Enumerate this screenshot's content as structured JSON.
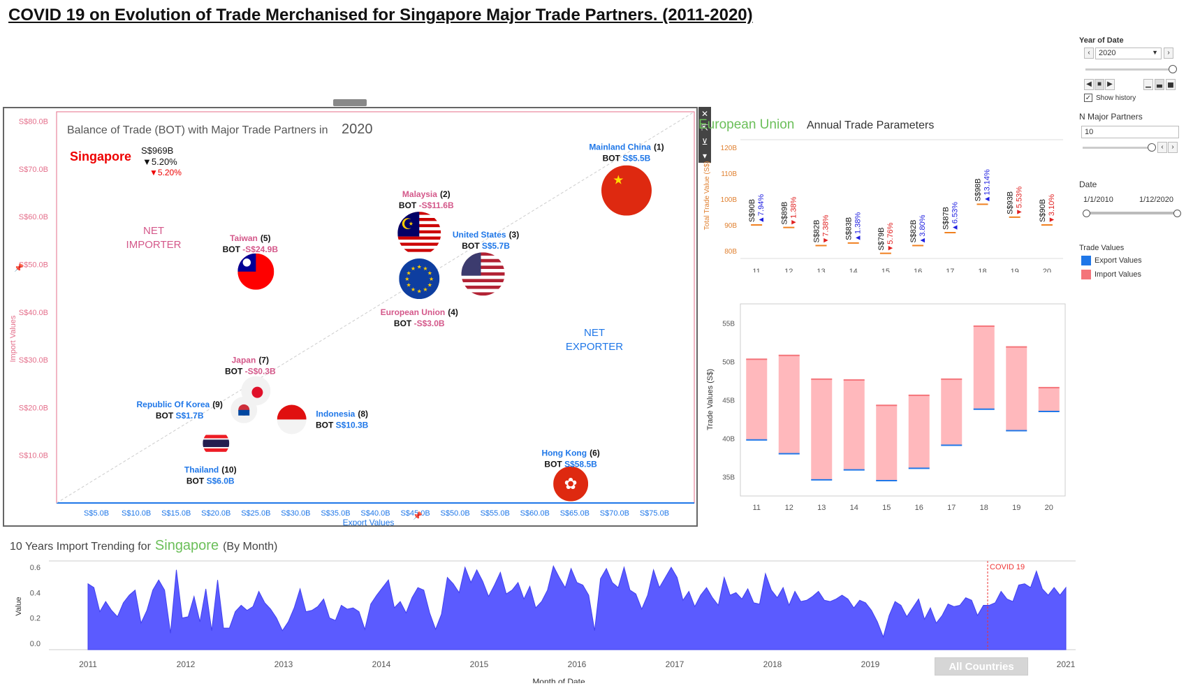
{
  "title": "COVID 19 on Evolution of Trade Merchanised for Singapore Major Trade Partners. (2011-2020)",
  "colors": {
    "export": "#1f77e8",
    "import": "#f4747a",
    "area": "#5b5bff",
    "pink_label": "#d4588a",
    "blue_label": "#1f77e8",
    "green_title": "#6bbf59",
    "axis": "#1f77e8",
    "ink": "#222"
  },
  "scatter": {
    "title_prefix": "Balance of Trade (BOT) with Major Trade Partners in",
    "title_year": "2020",
    "country": "Singapore",
    "total": "S$969B",
    "change_black": "▼5.20%",
    "change_red": "▼5.20%",
    "net_importer": [
      "NET",
      "IMPORTER"
    ],
    "net_exporter": [
      "NET",
      "EXPORTER"
    ],
    "x_title": "Export Values",
    "y_title": "Import Values",
    "x_ticks": [
      "S$5.0B",
      "S$10.0B",
      "S$15.0B",
      "S$20.0B",
      "S$25.0B",
      "S$30.0B",
      "S$35.0B",
      "S$40.0B",
      "S$45.0B",
      "S$50.0B",
      "S$55.0B",
      "S$60.0B",
      "S$65.0B",
      "S$70.0B",
      "S$75.0B"
    ],
    "y_ticks": [
      "S$10.0B",
      "S$20.0B",
      "S$30.0B",
      "S$40.0B",
      "S$50.0B",
      "S$60.0B",
      "S$70.0B",
      "S$80.0B"
    ],
    "toolbar": [
      "✕",
      "⇱",
      "⊻",
      "▾"
    ]
  },
  "chart_data": [
    {
      "type": "scatter",
      "xlabel": "Export Values",
      "ylabel": "Import Values",
      "xlim": [
        0,
        80
      ],
      "ylim": [
        0,
        82
      ],
      "points": [
        {
          "name": "Mainland China",
          "rank": "(1)",
          "bot": "S$5.5B",
          "x": 71.5,
          "y": 65.5,
          "flag": "china",
          "bot_color": "blue"
        },
        {
          "name": "Malaysia",
          "rank": "(2)",
          "bot": "-S$11.6B",
          "x": 45.5,
          "y": 56.5,
          "flag": "malaysia",
          "bot_color": "pink"
        },
        {
          "name": "United States",
          "rank": "(3)",
          "bot": "S$5.7B",
          "x": 53.5,
          "y": 48.0,
          "flag": "usa",
          "bot_color": "blue"
        },
        {
          "name": "European Union",
          "rank": "(4)",
          "bot": "-S$3.0B",
          "x": 45.5,
          "y": 47.0,
          "flag": "eu",
          "bot_color": "pink"
        },
        {
          "name": "Taiwan",
          "rank": "(5)",
          "bot": "-S$24.9B",
          "x": 25.0,
          "y": 48.5,
          "flag": "taiwan",
          "bot_color": "pink"
        },
        {
          "name": "Hong Kong",
          "rank": "(6)",
          "bot": "S$58.5B",
          "x": 64.5,
          "y": 4.0,
          "flag": "hongkong",
          "bot_color": "blue"
        },
        {
          "name": "Japan",
          "rank": "(7)",
          "bot": "-S$0.3B",
          "x": 25.0,
          "y": 23.5,
          "flag": "japan",
          "bot_color": "pink"
        },
        {
          "name": "Indonesia",
          "rank": "(8)",
          "bot": "S$10.3B",
          "x": 29.5,
          "y": 17.5,
          "flag": "indonesia",
          "bot_color": "blue"
        },
        {
          "name": "Republic Of Korea",
          "rank": "(9)",
          "bot": "S$1.7B",
          "x": 23.5,
          "y": 19.5,
          "flag": "korea",
          "bot_color": "blue"
        },
        {
          "name": "Thailand",
          "rank": "(10)",
          "bot": "S$6.0B",
          "x": 20.0,
          "y": 12.5,
          "flag": "thailand",
          "bot_color": "blue"
        }
      ]
    },
    {
      "type": "line",
      "title_partner": "European Union",
      "title_suffix": "Annual Trade Parameters",
      "ylabel": "Total Trade Value (S$)",
      "ylim": [
        77,
        123
      ],
      "y_ticks": [
        "80B",
        "90B",
        "100B",
        "110B",
        "120B"
      ],
      "y_tick_values": [
        80,
        90,
        100,
        110,
        120
      ],
      "categories": [
        "11",
        "12",
        "13",
        "14",
        "15",
        "16",
        "17",
        "18",
        "19",
        "20"
      ],
      "values": [
        90,
        89,
        82,
        83,
        79,
        82,
        87,
        98,
        93,
        90
      ],
      "value_labels": [
        "S$90B",
        "S$89B",
        "S$82B",
        "S$83B",
        "S$79B",
        "S$82B",
        "S$87B",
        "S$98B",
        "S$93B",
        "S$90B"
      ],
      "changes": [
        "7.94%",
        "1.38%",
        "7.38%",
        "1.38%",
        "5.76%",
        "3.80%",
        "6.53%",
        "13.14%",
        "5.53%",
        "3.10%"
      ],
      "direction": [
        "up",
        "down",
        "down",
        "up",
        "down",
        "up",
        "up",
        "up",
        "down",
        "down"
      ]
    },
    {
      "type": "bar",
      "ylabel": "Trade Values (S$)",
      "ylim": [
        32.5,
        57.5
      ],
      "y_ticks": [
        "35B",
        "40B",
        "45B",
        "50B",
        "55B"
      ],
      "y_tick_values": [
        35,
        40,
        45,
        50,
        55
      ],
      "categories": [
        "11",
        "12",
        "13",
        "14",
        "15",
        "16",
        "17",
        "18",
        "19",
        "20"
      ],
      "series": [
        {
          "name": "Export Values",
          "values": [
            39.8,
            38.0,
            34.6,
            35.9,
            34.5,
            36.1,
            39.1,
            43.8,
            41.0,
            43.5
          ]
        },
        {
          "name": "Import Values",
          "values": [
            50.3,
            50.8,
            47.7,
            47.6,
            44.3,
            45.6,
            47.7,
            54.6,
            51.9,
            46.6
          ]
        }
      ]
    },
    {
      "type": "area",
      "title_prefix": "10 Years Import Trending for",
      "title_country": "Singapore",
      "title_suffix": "(By Month)",
      "xlabel": "Month of Date",
      "ylabel": "Value",
      "y_ticks": [
        "0.0",
        "0.2",
        "0.4",
        "0.6"
      ],
      "y_tick_values": [
        0,
        0.2,
        0.4,
        0.6
      ],
      "ylim": [
        -0.05,
        0.65
      ],
      "x_ticks": [
        "2011",
        "2012",
        "2013",
        "2014",
        "2015",
        "2016",
        "2017",
        "2018",
        "2019",
        "2020",
        "2021"
      ],
      "x_start": 2011,
      "x_end": 2021,
      "annotation": {
        "label": "COVID 19",
        "x": 2020.2
      },
      "values": [
        0.47,
        0.44,
        0.25,
        0.33,
        0.26,
        0.21,
        0.32,
        0.38,
        0.42,
        0.16,
        0.26,
        0.42,
        0.5,
        0.42,
        0.08,
        0.58,
        0.2,
        0.21,
        0.37,
        0.17,
        0.43,
        0.1,
        0.5,
        0.12,
        0.12,
        0.25,
        0.3,
        0.26,
        0.29,
        0.41,
        0.32,
        0.27,
        0.2,
        0.1,
        0.17,
        0.28,
        0.43,
        0.25,
        0.26,
        0.29,
        0.35,
        0.2,
        0.18,
        0.3,
        0.27,
        0.28,
        0.25,
        0.11,
        0.31,
        0.38,
        0.44,
        0.5,
        0.28,
        0.33,
        0.24,
        0.36,
        0.44,
        0.42,
        0.24,
        0.11,
        0.23,
        0.52,
        0.47,
        0.4,
        0.6,
        0.48,
        0.58,
        0.49,
        0.37,
        0.46,
        0.56,
        0.39,
        0.42,
        0.48,
        0.35,
        0.45,
        0.28,
        0.33,
        0.42,
        0.61,
        0.52,
        0.44,
        0.59,
        0.48,
        0.46,
        0.38,
        0.1,
        0.51,
        0.59,
        0.48,
        0.44,
        0.6,
        0.42,
        0.39,
        0.27,
        0.38,
        0.58,
        0.44,
        0.52,
        0.6,
        0.52,
        0.34,
        0.41,
        0.29,
        0.38,
        0.44,
        0.36,
        0.3,
        0.52,
        0.38,
        0.4,
        0.35,
        0.43,
        0.32,
        0.31,
        0.55,
        0.42,
        0.36,
        0.44,
        0.3,
        0.41,
        0.33,
        0.34,
        0.37,
        0.41,
        0.34,
        0.33,
        0.35,
        0.38,
        0.35,
        0.28,
        0.34,
        0.32,
        0.26,
        0.17,
        0.05,
        0.22,
        0.33,
        0.3,
        0.21,
        0.28,
        0.35,
        0.19,
        0.28,
        0.16,
        0.22,
        0.31,
        0.29,
        0.3,
        0.36,
        0.34,
        0.22,
        0.3,
        0.3,
        0.32,
        0.41,
        0.35,
        0.33,
        0.46,
        0.47,
        0.44,
        0.57,
        0.43,
        0.38,
        0.44,
        0.38,
        0.44
      ]
    }
  ],
  "controls": {
    "year_label": "Year of Date",
    "year_value": "2020",
    "show_history": "Show history",
    "n_partners_label": "N Major Partners",
    "n_partners_value": "10",
    "date_label": "Date",
    "date_start": "1/1/2010",
    "date_end": "1/12/2020",
    "legend_title": "Trade Values",
    "legend_items": [
      "Export Values",
      "Import Values"
    ],
    "all_countries": "All Countries"
  }
}
